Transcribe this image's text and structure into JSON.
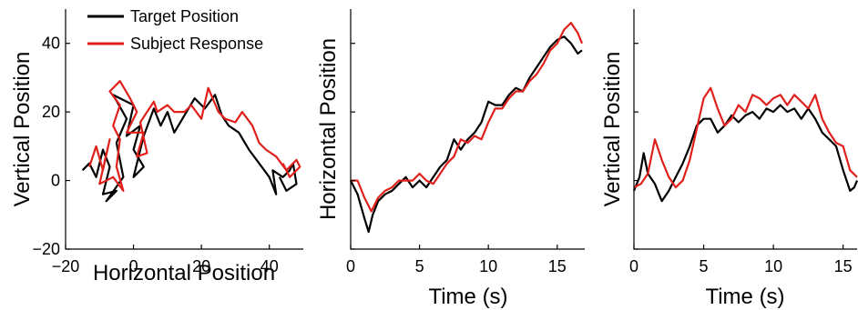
{
  "chart_data": [
    {
      "type": "line",
      "id": "trajectory",
      "xlabel": "Horizontal Position",
      "ylabel": "Vertical Position",
      "xlim": [
        -20,
        50
      ],
      "ylim": [
        -20,
        50
      ],
      "xticks": [
        -20,
        0,
        20,
        40
      ],
      "yticks": [
        -20,
        0,
        20,
        40
      ],
      "legend": {
        "placement": "top-left"
      },
      "series": [
        {
          "name": "Target Position",
          "color": "#000000",
          "points": [
            [
              -15,
              3
            ],
            [
              -13,
              5
            ],
            [
              -11,
              1
            ],
            [
              -9,
              9
            ],
            [
              -7,
              4
            ],
            [
              -9,
              -4
            ],
            [
              -5,
              -3
            ],
            [
              -8,
              -6
            ],
            [
              -3,
              1
            ],
            [
              -5,
              11
            ],
            [
              -2,
              18
            ],
            [
              -6,
              25
            ],
            [
              0,
              22
            ],
            [
              -2,
              13
            ],
            [
              2,
              16
            ],
            [
              0,
              9
            ],
            [
              3,
              4
            ],
            [
              0,
              1
            ],
            [
              3,
              13
            ],
            [
              6,
              21
            ],
            [
              8,
              16
            ],
            [
              10,
              20
            ],
            [
              12,
              14
            ],
            [
              15,
              19
            ],
            [
              18,
              24
            ],
            [
              21,
              21
            ],
            [
              24,
              25
            ],
            [
              26,
              19
            ],
            [
              28,
              16
            ],
            [
              31,
              14
            ],
            [
              34,
              9
            ],
            [
              37,
              5
            ],
            [
              40,
              1
            ],
            [
              42,
              -4
            ],
            [
              41,
              3
            ],
            [
              44,
              1
            ],
            [
              46,
              3
            ],
            [
              47,
              5
            ],
            [
              48,
              -1
            ],
            [
              45,
              -3
            ],
            [
              43,
              1
            ]
          ]
        },
        {
          "name": "Subject Response",
          "color": "#e0201b",
          "points": [
            [
              -13,
              4
            ],
            [
              -11,
              10
            ],
            [
              -9,
              3
            ],
            [
              -7,
              12
            ],
            [
              -10,
              -1
            ],
            [
              -6,
              1
            ],
            [
              -3,
              -3
            ],
            [
              -5,
              4
            ],
            [
              -4,
              12
            ],
            [
              -6,
              16
            ],
            [
              -4,
              22
            ],
            [
              -7,
              26
            ],
            [
              -4,
              29
            ],
            [
              -1,
              24
            ],
            [
              1,
              20
            ],
            [
              -2,
              14
            ],
            [
              3,
              14
            ],
            [
              1,
              7
            ],
            [
              4,
              8
            ],
            [
              2,
              17
            ],
            [
              6,
              23
            ],
            [
              7,
              20
            ],
            [
              10,
              22
            ],
            [
              12,
              20
            ],
            [
              15,
              20
            ],
            [
              17,
              22
            ],
            [
              20,
              18
            ],
            [
              22,
              27
            ],
            [
              25,
              20
            ],
            [
              27,
              18
            ],
            [
              30,
              17
            ],
            [
              32,
              20
            ],
            [
              35,
              16
            ],
            [
              37,
              11
            ],
            [
              39,
              9
            ],
            [
              42,
              7
            ],
            [
              45,
              3
            ],
            [
              48,
              6
            ],
            [
              49,
              4
            ],
            [
              46,
              1
            ],
            [
              44,
              5
            ]
          ]
        }
      ]
    },
    {
      "type": "line",
      "id": "horizontal-time",
      "xlabel": "Time (s)",
      "ylabel": "Horizontal Position",
      "xlim": [
        0,
        17
      ],
      "ylim": [
        -20,
        50
      ],
      "xticks": [
        0,
        5,
        10,
        15
      ],
      "series": [
        {
          "name": "Target Position",
          "color": "#000000",
          "points": [
            [
              0,
              0
            ],
            [
              0.5,
              -4
            ],
            [
              1,
              -11
            ],
            [
              1.3,
              -15
            ],
            [
              1.6,
              -10
            ],
            [
              2,
              -6
            ],
            [
              2.5,
              -4
            ],
            [
              3,
              -3
            ],
            [
              3.5,
              -1
            ],
            [
              4,
              1
            ],
            [
              4.5,
              -2
            ],
            [
              5,
              0
            ],
            [
              5.5,
              -2
            ],
            [
              6,
              1
            ],
            [
              6.5,
              4
            ],
            [
              7,
              6
            ],
            [
              7.5,
              12
            ],
            [
              8,
              9
            ],
            [
              8.5,
              12
            ],
            [
              9,
              14
            ],
            [
              9.5,
              17
            ],
            [
              10,
              23
            ],
            [
              10.5,
              22
            ],
            [
              11,
              22
            ],
            [
              11.5,
              25
            ],
            [
              12,
              27
            ],
            [
              12.5,
              26
            ],
            [
              13,
              30
            ],
            [
              13.5,
              33
            ],
            [
              14,
              36
            ],
            [
              14.5,
              39
            ],
            [
              15,
              41
            ],
            [
              15.5,
              42
            ],
            [
              16,
              40
            ],
            [
              16.5,
              37
            ],
            [
              16.8,
              38
            ]
          ]
        },
        {
          "name": "Subject Response",
          "color": "#e0201b",
          "points": [
            [
              0,
              0
            ],
            [
              0.5,
              0
            ],
            [
              1,
              -5
            ],
            [
              1.5,
              -9
            ],
            [
              2,
              -5
            ],
            [
              2.5,
              -3
            ],
            [
              3,
              -2
            ],
            [
              3.5,
              0
            ],
            [
              4,
              0
            ],
            [
              4.5,
              0
            ],
            [
              5,
              2
            ],
            [
              5.5,
              0
            ],
            [
              6,
              -1
            ],
            [
              6.5,
              2
            ],
            [
              7,
              5
            ],
            [
              7.5,
              7
            ],
            [
              8,
              12
            ],
            [
              8.5,
              11
            ],
            [
              9,
              13
            ],
            [
              9.5,
              12
            ],
            [
              10,
              17
            ],
            [
              10.5,
              21
            ],
            [
              11,
              21
            ],
            [
              11.5,
              24
            ],
            [
              12,
              26
            ],
            [
              12.5,
              26
            ],
            [
              13,
              29
            ],
            [
              13.5,
              31
            ],
            [
              14,
              34
            ],
            [
              14.5,
              38
            ],
            [
              15,
              40
            ],
            [
              15.5,
              44
            ],
            [
              16,
              46
            ],
            [
              16.5,
              43
            ],
            [
              16.8,
              40
            ]
          ]
        }
      ]
    },
    {
      "type": "line",
      "id": "vertical-time",
      "xlabel": "Time (s)",
      "ylabel": "Vertical Position",
      "xlim": [
        0,
        16
      ],
      "ylim": [
        -20,
        50
      ],
      "xticks": [
        0,
        5,
        10,
        15
      ],
      "series": [
        {
          "name": "Target Position",
          "color": "#000000",
          "points": [
            [
              0,
              -3
            ],
            [
              0.4,
              1
            ],
            [
              0.7,
              8
            ],
            [
              1,
              2
            ],
            [
              1.5,
              -1
            ],
            [
              2,
              -6
            ],
            [
              2.5,
              -3
            ],
            [
              3,
              1
            ],
            [
              3.5,
              5
            ],
            [
              4,
              10
            ],
            [
              4.5,
              16
            ],
            [
              5,
              18
            ],
            [
              5.5,
              18
            ],
            [
              6,
              14
            ],
            [
              6.5,
              16
            ],
            [
              7,
              19
            ],
            [
              7.5,
              17
            ],
            [
              8,
              19
            ],
            [
              8.5,
              20
            ],
            [
              9,
              18
            ],
            [
              9.5,
              21
            ],
            [
              10,
              20
            ],
            [
              10.5,
              22
            ],
            [
              11,
              20
            ],
            [
              11.5,
              21
            ],
            [
              12,
              18
            ],
            [
              12.5,
              21
            ],
            [
              13,
              18
            ],
            [
              13.5,
              14
            ],
            [
              14,
              12
            ],
            [
              14.5,
              10
            ],
            [
              15,
              3
            ],
            [
              15.5,
              -3
            ],
            [
              15.8,
              -2
            ],
            [
              16,
              0
            ]
          ]
        },
        {
          "name": "Subject Response",
          "color": "#e0201b",
          "points": [
            [
              0,
              -2
            ],
            [
              0.5,
              -1
            ],
            [
              1,
              2
            ],
            [
              1.5,
              12
            ],
            [
              2,
              6
            ],
            [
              2.5,
              1
            ],
            [
              3,
              -2
            ],
            [
              3.5,
              0
            ],
            [
              4,
              6
            ],
            [
              4.5,
              15
            ],
            [
              5,
              24
            ],
            [
              5.5,
              27
            ],
            [
              6,
              21
            ],
            [
              6.5,
              16
            ],
            [
              7,
              18
            ],
            [
              7.5,
              22
            ],
            [
              8,
              20
            ],
            [
              8.5,
              25
            ],
            [
              9,
              24
            ],
            [
              9.5,
              22
            ],
            [
              10,
              24
            ],
            [
              10.5,
              25
            ],
            [
              11,
              22
            ],
            [
              11.5,
              25
            ],
            [
              12,
              23
            ],
            [
              12.5,
              21
            ],
            [
              13,
              25
            ],
            [
              13.5,
              18
            ],
            [
              14,
              14
            ],
            [
              14.5,
              11
            ],
            [
              15,
              10
            ],
            [
              15.5,
              3
            ],
            [
              16,
              1
            ]
          ]
        }
      ]
    }
  ]
}
